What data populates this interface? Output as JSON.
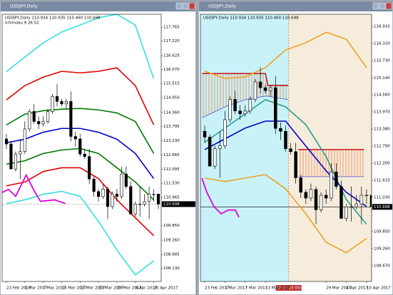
{
  "candles": [
    [
      113.3,
      113.5,
      112.9,
      113.1
    ],
    [
      113.1,
      113.2,
      112.1,
      112.1
    ],
    [
      112.1,
      112.8,
      112.0,
      112.7
    ],
    [
      112.7,
      113.3,
      111.7,
      112.8
    ],
    [
      112.8,
      114.0,
      112.7,
      113.7
    ],
    [
      113.7,
      114.5,
      113.6,
      114.4
    ],
    [
      114.4,
      114.7,
      113.9,
      114.0
    ],
    [
      114.0,
      114.2,
      113.7,
      113.9
    ],
    [
      113.9,
      114.2,
      113.8,
      114.0
    ],
    [
      114.0,
      114.5,
      113.9,
      114.4
    ],
    [
      114.4,
      115.1,
      114.3,
      115.0
    ],
    [
      115.0,
      115.5,
      114.6,
      114.8
    ],
    [
      114.8,
      114.9,
      114.6,
      114.7
    ],
    [
      114.7,
      114.9,
      114.5,
      114.8
    ],
    [
      114.8,
      115.2,
      113.2,
      113.4
    ],
    [
      113.4,
      113.6,
      113.0,
      113.3
    ],
    [
      113.3,
      113.5,
      112.6,
      112.7
    ],
    [
      112.7,
      112.9,
      112.5,
      112.6
    ],
    [
      112.6,
      112.9,
      111.5,
      111.7
    ],
    [
      111.7,
      111.8,
      111.0,
      111.2
    ],
    [
      111.2,
      111.3,
      110.8,
      111.0
    ],
    [
      111.0,
      111.5,
      110.9,
      111.3
    ],
    [
      111.3,
      111.4,
      110.1,
      110.6
    ],
    [
      110.6,
      111.2,
      110.5,
      111.1
    ],
    [
      111.1,
      111.3,
      110.8,
      111.0
    ],
    [
      111.0,
      112.2,
      110.9,
      111.9
    ],
    [
      111.9,
      112.2,
      111.3,
      111.4
    ],
    [
      111.4,
      111.6,
      110.3,
      110.3
    ],
    [
      110.3,
      110.8,
      110.2,
      110.7
    ],
    [
      110.7,
      111.4,
      110.2,
      110.7
    ],
    [
      110.7,
      111.1,
      110.6,
      110.8
    ],
    [
      110.8,
      111.4,
      110.1,
      111.1
    ],
    [
      111.1,
      111.3,
      110.8,
      111.1
    ],
    [
      111.1,
      111.1,
      110.5,
      110.7
    ]
  ],
  "windows": [
    {
      "title": "USDJPY,Daily",
      "info": "USDJPY,Daily 110.934 110.935 110.460 110.698",
      "indicator": "Ichimoku 9 26 52",
      "background": "#ffffff",
      "xlim": [
        -0.93,
        33.62
      ],
      "ylim": [
        107.61,
        118.28
      ],
      "yticks": [
        {
          "value": 117.765,
          "label": "117.765"
        },
        {
          "value": 117.22,
          "label": "117.220"
        },
        {
          "value": 116.625,
          "label": "116.625"
        },
        {
          "value": 116.07,
          "label": "116.070"
        },
        {
          "value": 115.515,
          "label": "115.515"
        },
        {
          "value": 114.95,
          "label": "114.950"
        },
        {
          "value": 114.36,
          "label": "114.360"
        },
        {
          "value": 113.795,
          "label": "113.795"
        },
        {
          "value": 113.23,
          "label": "113.230"
        },
        {
          "value": 112.665,
          "label": "112.665"
        },
        {
          "value": 112.095,
          "label": "112.095"
        },
        {
          "value": 111.53,
          "label": "111.530"
        },
        {
          "value": 110.965,
          "label": "110.965"
        },
        {
          "value": 109.85,
          "label": "109.850"
        },
        {
          "value": 109.26,
          "label": "109.260"
        },
        {
          "value": 108.685,
          "label": "108.685"
        },
        {
          "value": 108.13,
          "label": "108.130"
        }
      ],
      "xticks": [
        {
          "value": 0,
          "label": "23 Feb 2017"
        },
        {
          "value": 4,
          "label": "1 Mar 2017"
        },
        {
          "value": 8,
          "label": "7 Mar 2017"
        },
        {
          "value": 12,
          "label": "13 Mar 2017"
        },
        {
          "value": 16,
          "label": "17 Mar 2017"
        },
        {
          "value": 20,
          "label": "23 Mar 2017"
        },
        {
          "value": 24,
          "label": "29 Mar 2017"
        },
        {
          "value": 28,
          "label": "4 Apr 2017"
        },
        {
          "value": 32,
          "label": "10 Apr 2017"
        }
      ],
      "last_price": {
        "value": 110.698,
        "label": "110.698"
      },
      "line_x": [
        0,
        4,
        8,
        12,
        16,
        20,
        24,
        28,
        32
      ],
      "lines": [
        {
          "color": "#33e0e0",
          "values": [
            115.99,
            116.57,
            117.14,
            117.57,
            117.85,
            118.14,
            118.28,
            117.85,
            115.71
          ]
        },
        {
          "color": "#e00000",
          "values": [
            114.86,
            115.43,
            115.77,
            116.0,
            115.94,
            116.0,
            116.14,
            115.43,
            113.86
          ]
        },
        {
          "color": "#007a00",
          "values": [
            113.86,
            114.29,
            114.43,
            114.49,
            114.52,
            114.46,
            114.34,
            114.0,
            112.72
          ]
        },
        {
          "color": "#0000cc",
          "values": [
            113.15,
            113.29,
            113.57,
            113.72,
            113.72,
            113.57,
            113.29,
            112.72,
            111.72
          ]
        },
        {
          "color": "#007a00",
          "values": [
            112.29,
            112.43,
            112.72,
            112.86,
            112.92,
            112.72,
            112.15,
            111.58,
            110.87
          ]
        },
        {
          "color": "#e00000",
          "values": [
            111.43,
            111.58,
            112.0,
            112.15,
            112.15,
            111.72,
            110.87,
            110.15,
            109.44
          ]
        },
        {
          "color": "#33e0e0",
          "values": [
            110.72,
            110.87,
            111.09,
            111.21,
            111.01,
            110.01,
            108.87,
            107.87,
            108.44
          ]
        }
      ],
      "extra_lines": [
        {
          "color": "#e000e0",
          "x": [
            -1.08,
            0.46,
            2,
            4.3,
            5.85,
            7.4,
            10.5,
            12.8
          ],
          "values": [
            111.15,
            111.29,
            111.01,
            111.86,
            111.29,
            110.81,
            110.87,
            110.72
          ]
        }
      ],
      "clouds": []
    },
    {
      "title": "USDJPY,Daily",
      "info": "USDJPY,Daily 110.934 110.935 110.460 110.698",
      "background": "#c8f2f8",
      "background_after": "#f6ecdc",
      "crosshair": {
        "x": 16.6,
        "label": "2017.03.23 00:00"
      },
      "xlim": [
        -0.85,
        33.0
      ],
      "ylim": [
        108.13,
        117.33
      ],
      "yticks": [
        {
          "value": 116.91,
          "label": "116.910"
        },
        {
          "value": 116.32,
          "label": "116.320"
        },
        {
          "value": 115.73,
          "label": "115.730"
        },
        {
          "value": 115.14,
          "label": "115.140"
        },
        {
          "value": 114.56,
          "label": "114.560"
        },
        {
          "value": 113.97,
          "label": "113.970"
        },
        {
          "value": 113.38,
          "label": "113.380"
        },
        {
          "value": 112.79,
          "label": "112.790"
        },
        {
          "value": 112.2,
          "label": "112.200"
        },
        {
          "value": 111.61,
          "label": "111.610"
        },
        {
          "value": 111.03,
          "label": "111.030"
        },
        {
          "value": 109.85,
          "label": "109.850"
        },
        {
          "value": 109.26,
          "label": "109.260"
        },
        {
          "value": 108.67,
          "label": "108.670"
        }
      ],
      "xticks": [
        {
          "value": 0,
          "label": "23 Feb 2017"
        },
        {
          "value": 4,
          "label": "1 Mar 2017"
        },
        {
          "value": 8,
          "label": "7 Mar 2017"
        },
        {
          "value": 12,
          "label": "13 Mar 2017"
        },
        {
          "value": 24,
          "label": "29 Mar 2017"
        },
        {
          "value": 28,
          "label": "4 Apr 2017"
        },
        {
          "value": 32,
          "label": "10 Apr 2017"
        }
      ],
      "last_price": {
        "value": 110.698,
        "label": "110.698"
      },
      "line_x": [
        0,
        4,
        8,
        12,
        16,
        20,
        24,
        28,
        32
      ],
      "lines": [
        {
          "color": "#f0a020",
          "values": [
            115.37,
            115.12,
            115.17,
            115.49,
            116.1,
            116.35,
            116.71,
            116.47,
            115.49
          ]
        },
        {
          "color": "#2a9d8f",
          "values": [
            112.92,
            113.41,
            113.9,
            114.39,
            114.14,
            113.53,
            112.43,
            110.95,
            110.1
          ]
        },
        {
          "color": "#0000cc",
          "values": [
            112.67,
            113.04,
            113.41,
            113.65,
            113.65,
            112.79,
            111.94,
            111.2,
            110.71
          ]
        },
        {
          "color": "#f0a020",
          "values": [
            111.69,
            111.57,
            111.69,
            111.81,
            111.32,
            110.46,
            109.48,
            109.12,
            109.61
          ]
        }
      ],
      "extra_lines": [
        {
          "color": "#e000e0",
          "x": [
            -0.56,
            0.42,
            1.83,
            3.24,
            4.65,
            6.06,
            6.76
          ],
          "values": [
            111.69,
            111.2,
            110.71,
            110.46,
            110.59,
            110.59,
            110.34
          ]
        }
      ],
      "clouds": [
        {
          "color": "#c00000",
          "x": [
            -0.5,
            4,
            8,
            12,
            12.5,
            16.5
          ],
          "top": [
            115.29,
            115.29,
            115.29,
            115.29,
            114.88,
            114.88
          ],
          "bottom": [
            113.77,
            114.14,
            114.39,
            114.51,
            114.51,
            114.39
          ]
        },
        {
          "color": "#c00000",
          "x": [
            18.5,
            31.5
          ],
          "top": [
            112.67,
            112.67
          ],
          "bottom": [
            111.74,
            111.74
          ]
        }
      ]
    }
  ]
}
